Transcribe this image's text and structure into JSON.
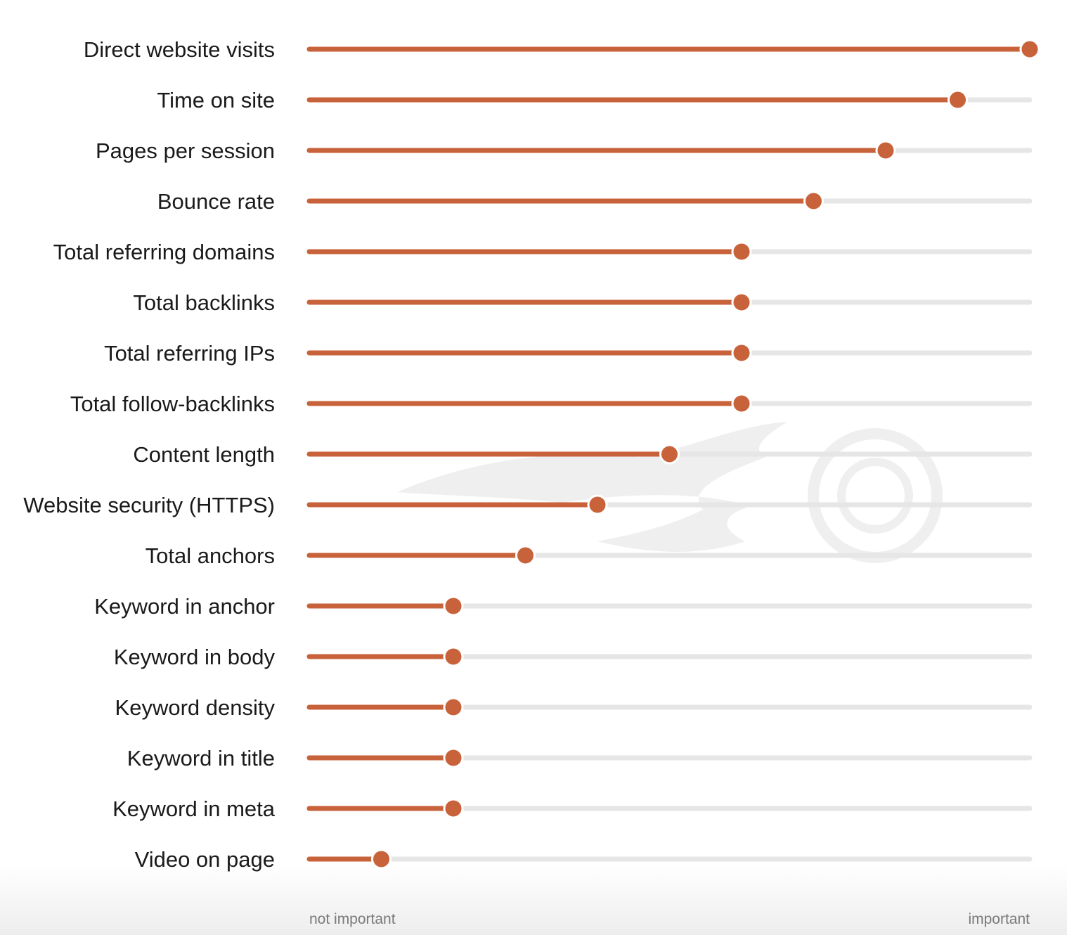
{
  "chart_data": {
    "type": "lollipop",
    "categories": [
      "Direct website visits",
      "Time on site",
      "Pages per session",
      "Bounce rate",
      "Total referring domains",
      "Total backlinks",
      "Total referring IPs",
      "Total follow-backlinks",
      "Content length",
      "Website security (HTTPS)",
      "Total anchors",
      "Keyword in anchor",
      "Keyword in body",
      "Keyword density",
      "Keyword in title",
      "Keyword in meta",
      "Video on page"
    ],
    "values": [
      1.0,
      0.9,
      0.8,
      0.7,
      0.6,
      0.6,
      0.6,
      0.6,
      0.5,
      0.4,
      0.3,
      0.2,
      0.2,
      0.2,
      0.2,
      0.2,
      0.1
    ],
    "xlim": [
      0,
      1
    ],
    "axis_min_label": "not important",
    "axis_max_label": "important",
    "colors": {
      "accent": "#c8623a",
      "track": "#e6e6e6",
      "watermark": "#efefef"
    },
    "grid": false,
    "legend": "none"
  }
}
